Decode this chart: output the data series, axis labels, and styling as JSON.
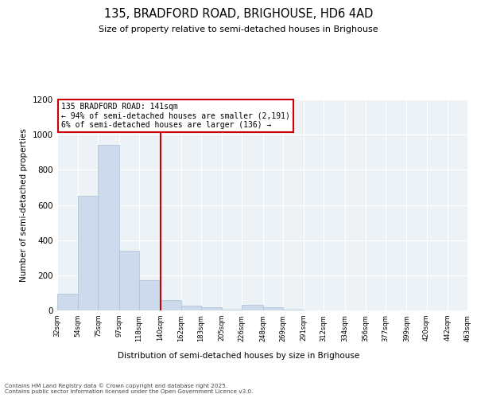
{
  "title_line1": "135, BRADFORD ROAD, BRIGHOUSE, HD6 4AD",
  "title_line2": "Size of property relative to semi-detached houses in Brighouse",
  "xlabel": "Distribution of semi-detached houses by size in Brighouse",
  "ylabel": "Number of semi-detached properties",
  "bar_color": "#ccdaeb",
  "bar_edge_color": "#a8c0d6",
  "bins": [
    32,
    54,
    75,
    97,
    118,
    140,
    162,
    183,
    205,
    226,
    248,
    269,
    291,
    312,
    334,
    356,
    377,
    399,
    420,
    442,
    463
  ],
  "counts": [
    95,
    650,
    940,
    340,
    170,
    60,
    28,
    20,
    5,
    30,
    18,
    5,
    2,
    2,
    1,
    1,
    1,
    1,
    1,
    1
  ],
  "property_size": 141,
  "annotation_title": "135 BRADFORD ROAD: 141sqm",
  "annotation_line2": "← 94% of semi-detached houses are smaller (2,191)",
  "annotation_line3": "6% of semi-detached houses are larger (136) →",
  "vline_color": "#cc0000",
  "ylim": [
    0,
    1200
  ],
  "yticks": [
    0,
    200,
    400,
    600,
    800,
    1000,
    1200
  ],
  "bin_labels": [
    "32sqm",
    "54sqm",
    "75sqm",
    "97sqm",
    "118sqm",
    "140sqm",
    "162sqm",
    "183sqm",
    "205sqm",
    "226sqm",
    "248sqm",
    "269sqm",
    "291sqm",
    "312sqm",
    "334sqm",
    "356sqm",
    "377sqm",
    "399sqm",
    "420sqm",
    "442sqm",
    "463sqm"
  ],
  "footnote_line1": "Contains HM Land Registry data © Crown copyright and database right 2025.",
  "footnote_line2": "Contains public sector information licensed under the Open Government Licence v3.0.",
  "bg_color": "#edf2f7",
  "grid_color": "#ffffff"
}
